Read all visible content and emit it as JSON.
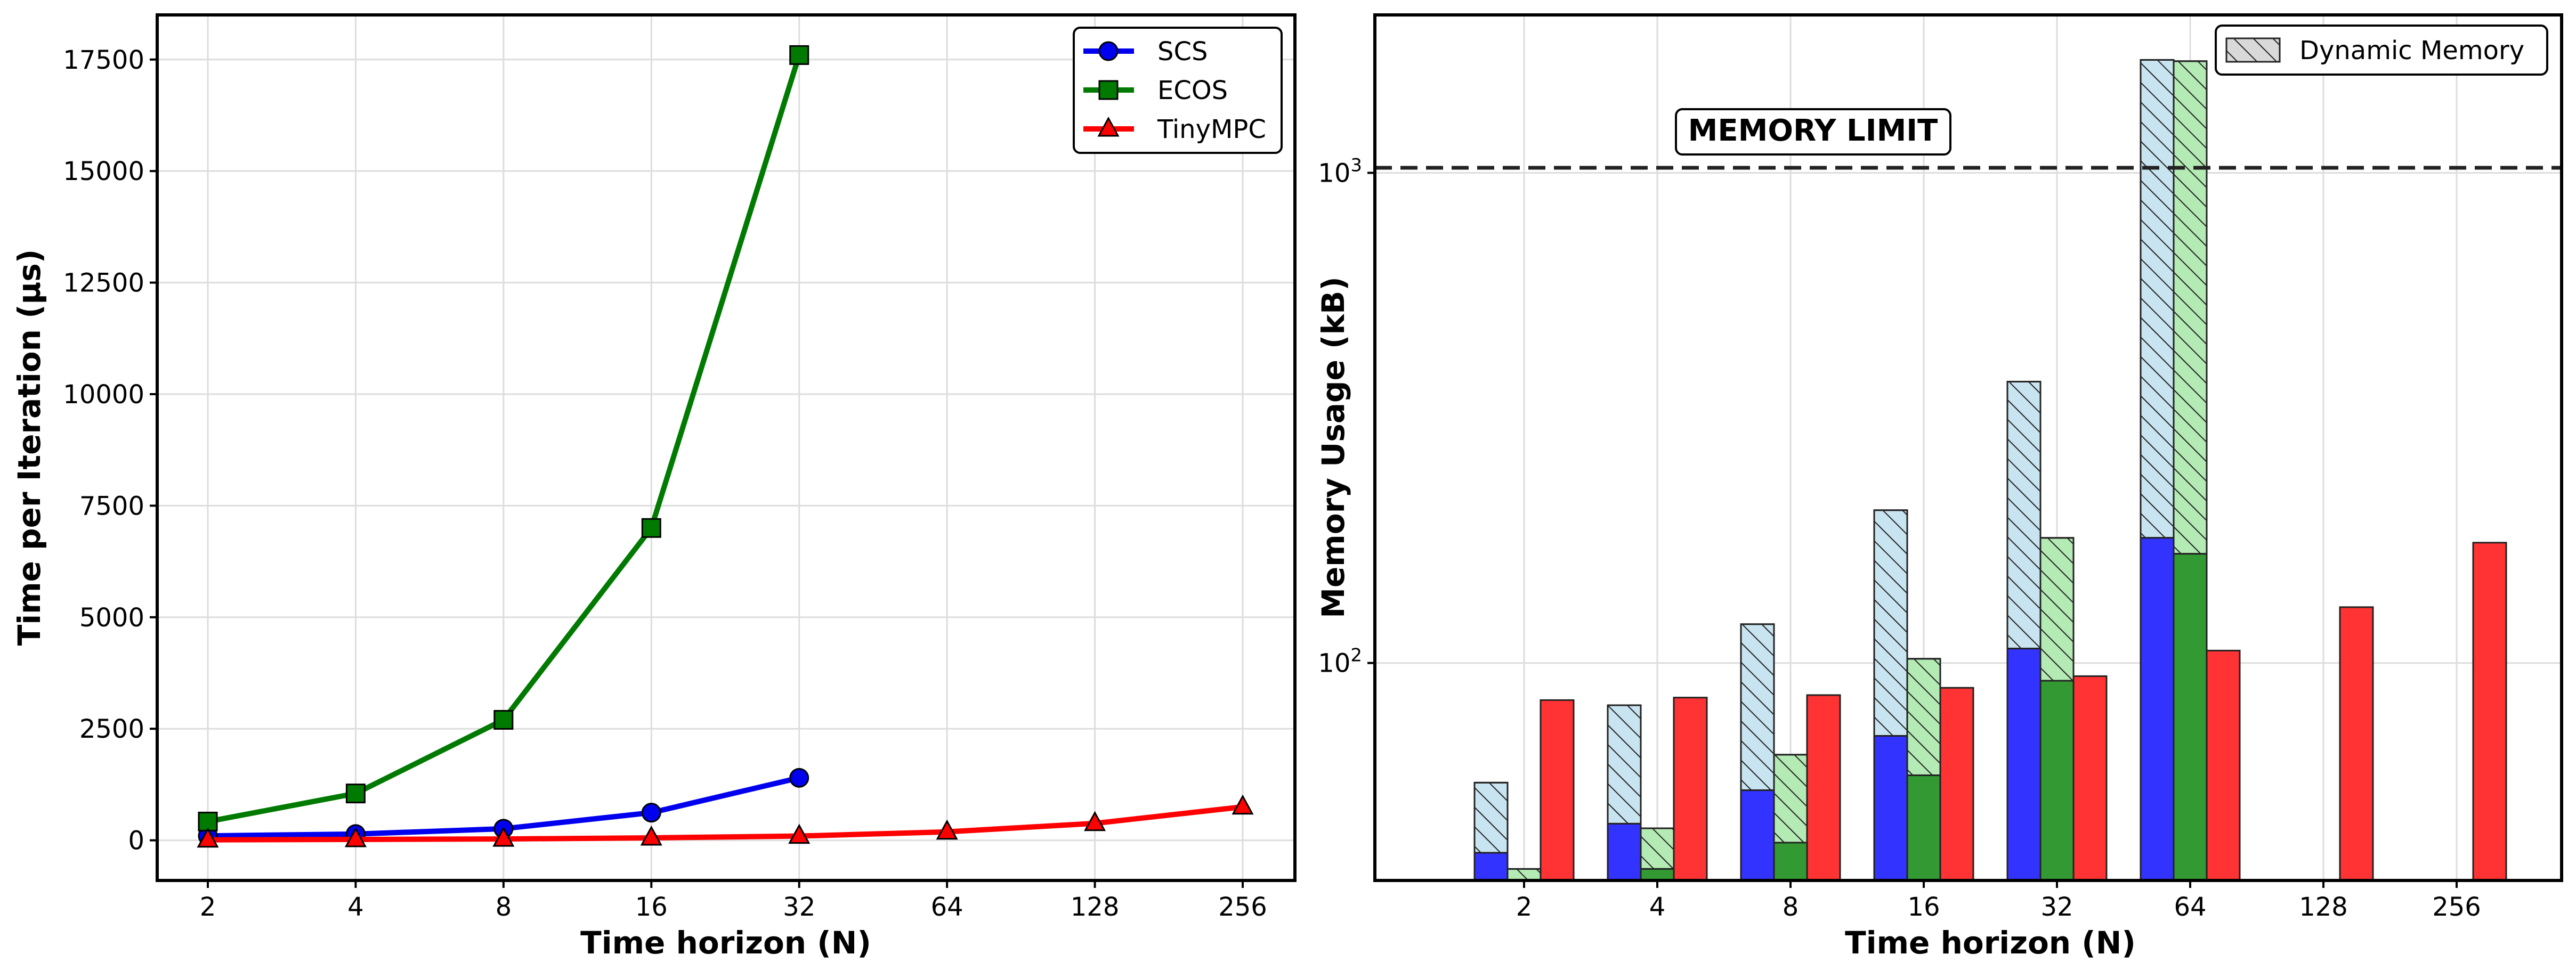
{
  "chart_data": [
    {
      "type": "line",
      "xlabel": "Time horizon (N)",
      "ylabel": "Time per Iteration (µs)",
      "x_ticks": [
        "2",
        "4",
        "8",
        "16",
        "32",
        "64",
        "128",
        "256"
      ],
      "y_ticks": [
        "0",
        "2500",
        "5000",
        "7500",
        "10000",
        "12500",
        "15000",
        "17500"
      ],
      "ylim": [
        -900,
        18500
      ],
      "x_scale": "log2",
      "grid": true,
      "legend_position": "top-right",
      "series": [
        {
          "name": "SCS",
          "color": "#0000ee",
          "marker": "circle",
          "x": [
            2,
            4,
            8,
            16,
            32
          ],
          "values": [
            100,
            140,
            260,
            620,
            1400
          ]
        },
        {
          "name": "ECOS",
          "color": "#007a00",
          "marker": "square",
          "x": [
            2,
            4,
            8,
            16,
            32
          ],
          "values": [
            420,
            1050,
            2700,
            7000,
            17600
          ]
        },
        {
          "name": "TinyMPC",
          "color": "#ff0000",
          "marker": "triangle",
          "x": [
            2,
            4,
            8,
            16,
            32,
            64,
            128,
            256
          ],
          "values": [
            10,
            20,
            30,
            55,
            95,
            190,
            380,
            750
          ]
        }
      ]
    },
    {
      "type": "bar",
      "xlabel": "Time horizon (N)",
      "ylabel": "Memory Usage (kB)",
      "categories": [
        "2",
        "4",
        "8",
        "16",
        "32",
        "64",
        "128",
        "256"
      ],
      "y_scale": "log",
      "ylim": [
        36,
        2100
      ],
      "y_ticks": [
        {
          "value": 100,
          "base": "10",
          "exp": "2"
        },
        {
          "value": 1000,
          "base": "10",
          "exp": "3"
        }
      ],
      "grid": true,
      "legend_position": "top-right",
      "legend_label": "Dynamic Memory",
      "memory_limit": {
        "value": 1024,
        "label": "MEMORY LIMIT"
      },
      "series": [
        {
          "solver": "SCS",
          "color": "#3333ff",
          "light_color": "#c8e4f0",
          "static": [
            41,
            47,
            55,
            71,
            107,
            180,
            null,
            null
          ],
          "total": [
            57,
            82,
            120,
            205,
            375,
            1700,
            null,
            null
          ]
        },
        {
          "solver": "ECOS",
          "color": "#339933",
          "light_color": "#b4eab4",
          "static": [
            36,
            38,
            43,
            59,
            92,
            167,
            null,
            null
          ],
          "total": [
            38,
            46,
            65,
            102,
            180,
            1690,
            null,
            null
          ]
        },
        {
          "solver": "TinyMPC",
          "color": "#ff3333",
          "light_color": null,
          "static": [
            84,
            85,
            86,
            89,
            94,
            106,
            130,
            176
          ],
          "total": [
            84,
            85,
            86,
            89,
            94,
            106,
            130,
            176
          ]
        }
      ]
    }
  ]
}
